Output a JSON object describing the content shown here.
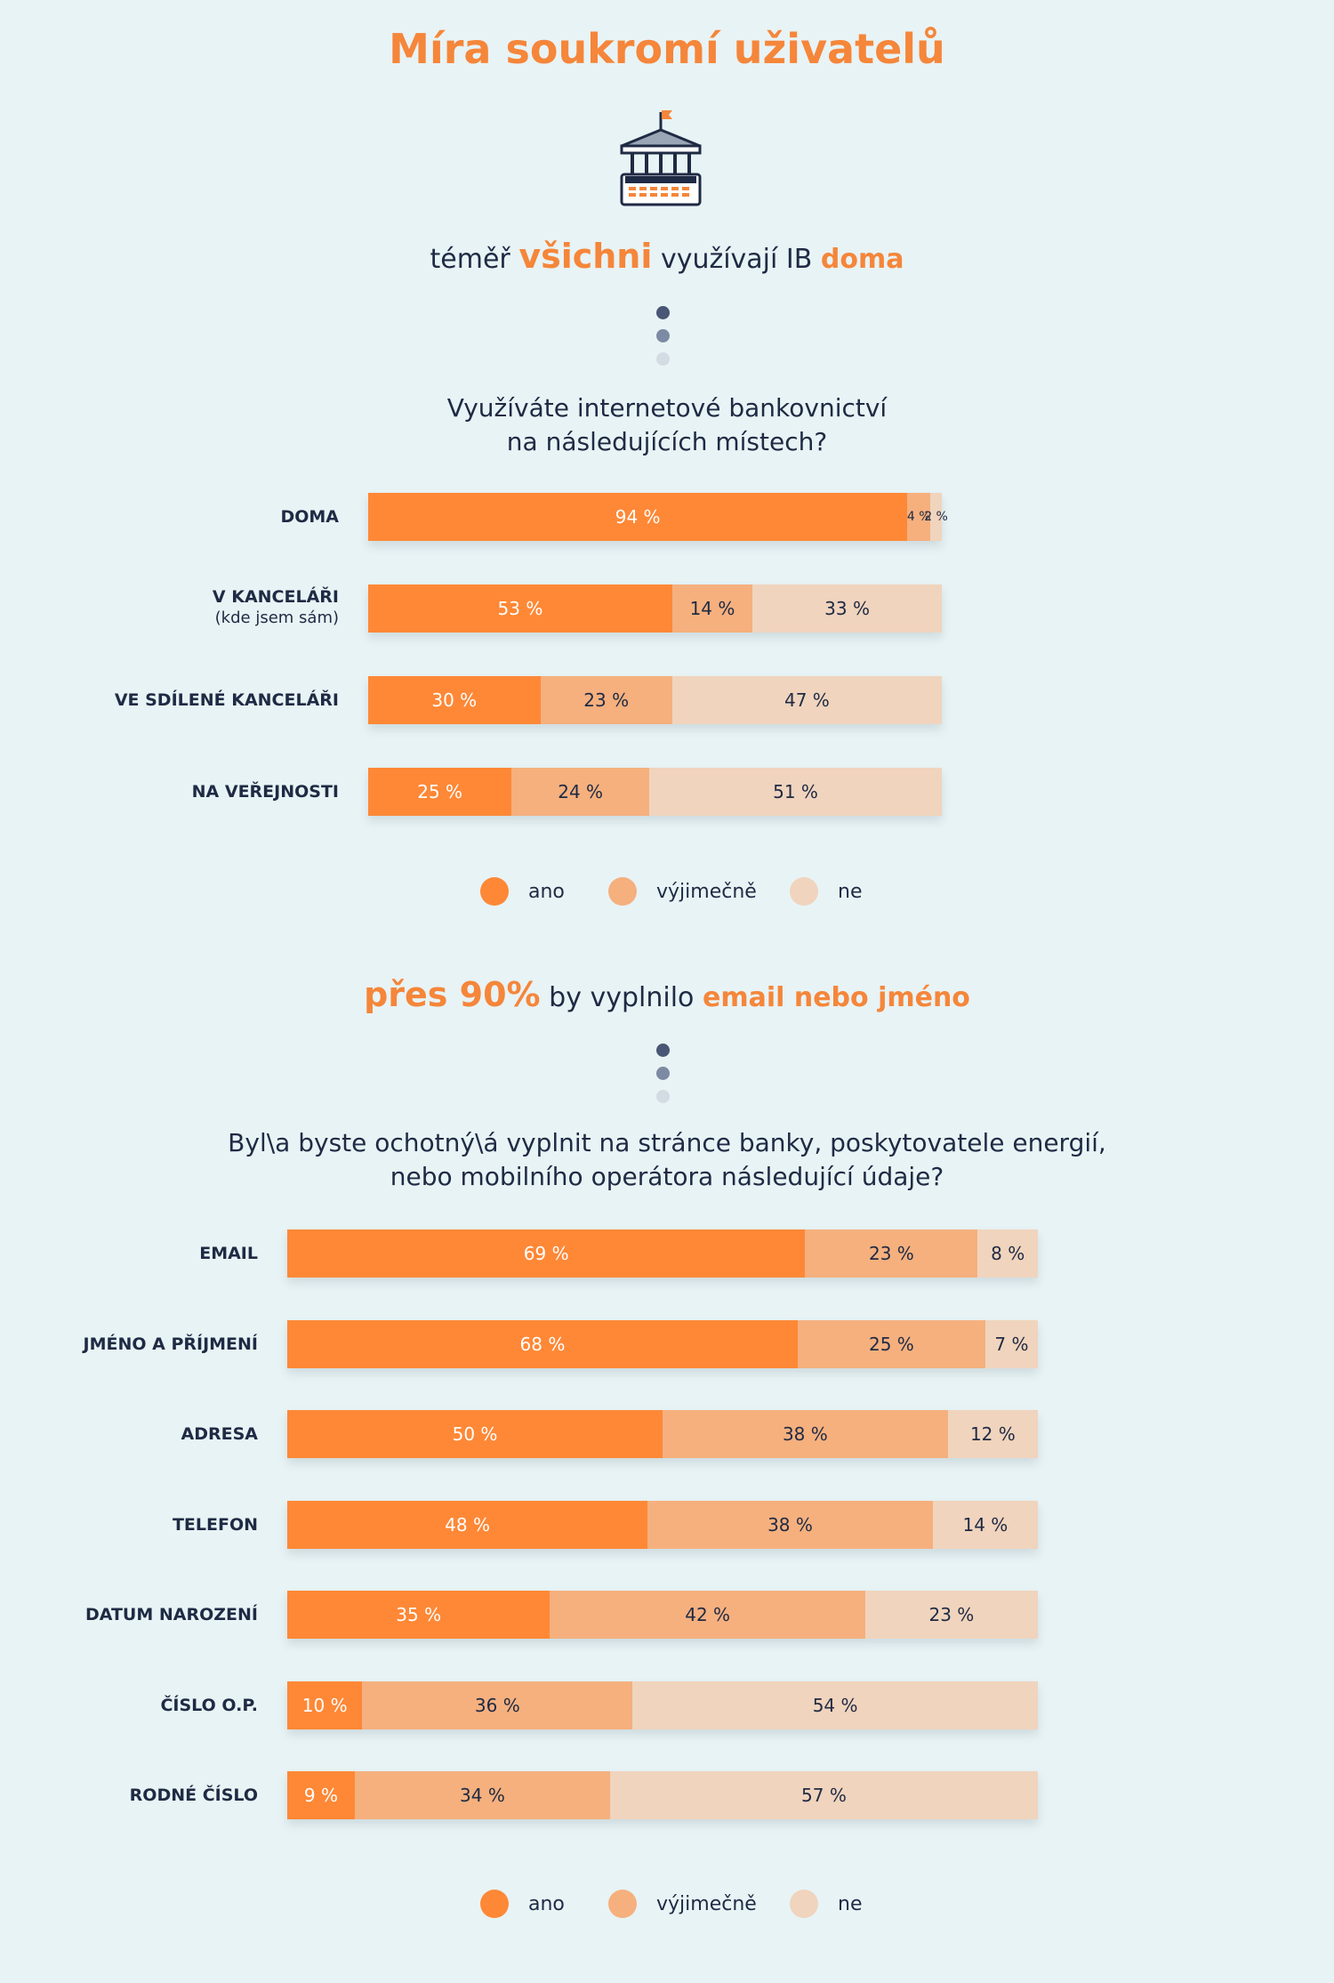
{
  "page": {
    "title": "Míra soukromí uživatelů",
    "icon": "bank-building-icon"
  },
  "colors": {
    "accent": "#f5863a",
    "ano": "#fe8836",
    "vyjimecne": "#f5b07e",
    "ne": "#f0d4bd",
    "dark": "#1f2a44"
  },
  "section1": {
    "headline": {
      "pre": "téměř",
      "h1": "všichni",
      "mid": "využívají IB",
      "h2": "doma"
    },
    "question": {
      "line1": "Využíváte internetové bankovnictví",
      "line2": "na následujících místech?"
    },
    "legend": [
      "ano",
      "výjimečně",
      "ne"
    ],
    "chart_data": {
      "type": "bar",
      "orientation": "horizontal",
      "stacked": true,
      "categories": [
        "DOMA",
        "V KANCELÁŘI",
        "VE SDÍLENÉ KANCELÁŘI",
        "NA VEŘEJNOSTI"
      ],
      "category_subtitles": [
        "",
        "(kde jsem sám)",
        "",
        ""
      ],
      "series": [
        {
          "name": "ano",
          "values": [
            94,
            53,
            30,
            25
          ],
          "labels": [
            "94 %",
            "53 %",
            "30 %",
            "25 %"
          ]
        },
        {
          "name": "výjimečně",
          "values": [
            4,
            14,
            23,
            24
          ],
          "labels": [
            "4 %",
            "14 %",
            "23 %",
            "24 %"
          ]
        },
        {
          "name": "ne",
          "values": [
            2,
            33,
            47,
            51
          ],
          "labels": [
            "2 %",
            "33 %",
            "47 %",
            "51 %"
          ]
        }
      ],
      "unit": "%",
      "xlim": [
        0,
        100
      ]
    }
  },
  "section2": {
    "headline": {
      "h1": "přes 90%",
      "mid": "by vyplnilo",
      "h2": "email nebo jméno"
    },
    "question": {
      "line1": "Byl\\a byste ochotný\\á vyplnit na stránce banky, poskytovatele energií,",
      "line2": "nebo mobilního operátora následující údaje?"
    },
    "legend": [
      "ano",
      "výjimečně",
      "ne"
    ],
    "chart_data": {
      "type": "bar",
      "orientation": "horizontal",
      "stacked": true,
      "categories": [
        "EMAIL",
        "JMÉNO A PŘÍJMENÍ",
        "ADRESA",
        "TELEFON",
        "DATUM NAROZENÍ",
        "ČÍSLO O.P.",
        "RODNÉ ČÍSLO"
      ],
      "series": [
        {
          "name": "ano",
          "values": [
            69,
            68,
            50,
            48,
            35,
            10,
            9
          ],
          "labels": [
            "69 %",
            "68 %",
            "50 %",
            "48 %",
            "35 %",
            "10 %",
            "9 %"
          ]
        },
        {
          "name": "výjimečně",
          "values": [
            23,
            25,
            38,
            38,
            42,
            36,
            34
          ],
          "labels": [
            "23 %",
            "25 %",
            "38 %",
            "38 %",
            "42 %",
            "36 %",
            "34 %"
          ]
        },
        {
          "name": "ne",
          "values": [
            8,
            7,
            12,
            14,
            23,
            54,
            57
          ],
          "labels": [
            "8 %",
            "7 %",
            "12 %",
            "14 %",
            "23 %",
            "54 %",
            "57 %"
          ]
        }
      ],
      "unit": "%",
      "xlim": [
        0,
        100
      ]
    }
  }
}
